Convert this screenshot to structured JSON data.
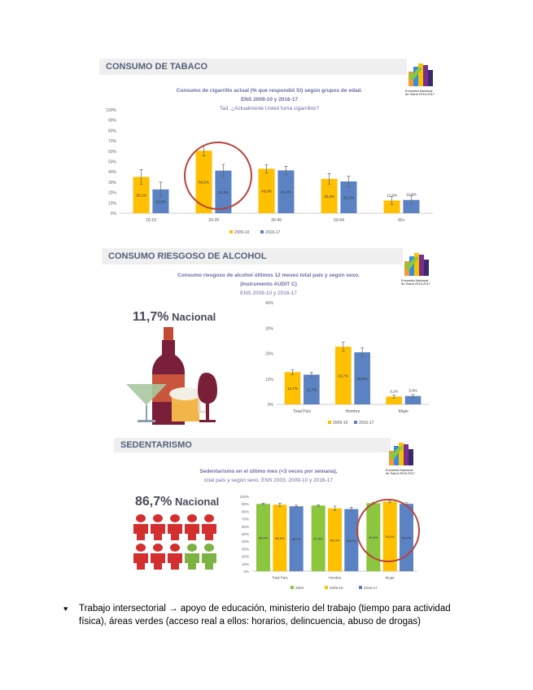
{
  "colors": {
    "y2003": "#8cc63f",
    "y2009": "#ffc000",
    "y2016": "#5b82c2"
  },
  "logo_text": "Encuesta Nacional de Salud 2016-2017",
  "panels": [
    {
      "header": "CONSUMO DE TABACO",
      "subtitle": [
        "Consumo de cigarrillo actual (% que respondió Sí) según grupos de edad.",
        "ENS 2009-10 y 2016-17",
        "Ta3. ¿Actualmente Usted fuma cigarrillos?"
      ]
    },
    {
      "header": "CONSUMO RIESGOSO DE ALCOHOL",
      "subtitle": [
        "Consumo riesgoso de alcohol últimos 12 meses total país  y según sexo.",
        "(Instrumento AUDIT C)",
        "ENS 2009-10 y 2016-17"
      ],
      "national_value": "11,7%",
      "national_label": "Nacional"
    },
    {
      "header": "SEDENTARISMO",
      "subtitle": [
        "Sedentarismo en el último mes (<3 veces por semana),",
        "total país y según sexo. ENS 2003, 2009-10 y 2016-17"
      ],
      "national_value": "86,7%",
      "national_label": "Nacional"
    }
  ],
  "chart_data": [
    {
      "type": "bar",
      "title": "Consumo de cigarrillo actual",
      "categories": [
        "15-19",
        "20-29",
        "30-49",
        "50-64",
        "65+"
      ],
      "ylim": [
        0,
        100
      ],
      "yticks": [
        "0%",
        "10%",
        "20%",
        "30%",
        "40%",
        "50%",
        "60%",
        "70%",
        "80%",
        "90%",
        "100%"
      ],
      "series": [
        {
          "name": "2009-10",
          "values": [
            35.1,
            60.5,
            43.0,
            33.2,
            12.3
          ],
          "labels": [
            "35,1%",
            "60,5%",
            "43,0%",
            "33,2%",
            "12,3%"
          ],
          "error": [
            7,
            5,
            4,
            5,
            4
          ]
        },
        {
          "name": "2016-17",
          "values": [
            23.0,
            41.2,
            41.4,
            30.7,
            12.8
          ],
          "labels": [
            "23,0%",
            "41,2%",
            "41,4%",
            "30,7%",
            "12,8%"
          ],
          "error": [
            7,
            6,
            4,
            5,
            4
          ]
        }
      ]
    },
    {
      "type": "bar",
      "title": "Consumo riesgoso de alcohol",
      "categories": [
        "Total País",
        "Hombre",
        "Mujer"
      ],
      "ylim": [
        0,
        40
      ],
      "yticks": [
        "0%",
        "10%",
        "20%",
        "30%",
        "40%"
      ],
      "series": [
        {
          "name": "2009-10",
          "values": [
            12.7,
            22.7,
            3.1
          ],
          "labels": [
            "12,7%",
            "22,7%",
            "3,1%"
          ],
          "error": [
            1,
            1.8,
            0.6
          ]
        },
        {
          "name": "2016-17",
          "values": [
            11.7,
            20.5,
            3.3
          ],
          "labels": [
            "11,7%",
            "20,5%",
            "3,3%"
          ],
          "error": [
            1,
            1.8,
            0.6
          ]
        }
      ]
    },
    {
      "type": "bar",
      "title": "Sedentarismo",
      "categories": [
        "Total País",
        "Hombre",
        "Mujer"
      ],
      "ylim": [
        0,
        100
      ],
      "yticks": [
        "0%",
        "10%",
        "20%",
        "30%",
        "40%",
        "50%",
        "60%",
        "70%",
        "80%",
        "90%",
        "100%"
      ],
      "series": [
        {
          "name": "2003",
          "values": [
            89.9,
            87.8,
            90.9
          ],
          "labels": [
            "89,9%",
            "87,8%",
            "90,9%"
          ],
          "error": [
            1,
            1,
            1
          ]
        },
        {
          "name": "2009-10",
          "values": [
            88.8,
            84.0,
            93.0
          ],
          "labels": [
            "88,8%",
            "84,0%",
            "93,0%"
          ],
          "error": [
            2,
            3,
            1.5
          ]
        },
        {
          "name": "2016-17",
          "values": [
            86.7,
            83.0,
            90.0
          ],
          "labels": [
            "86,7%",
            "83,0%",
            "90,0%"
          ],
          "error": [
            1.5,
            2.5,
            1.5
          ]
        }
      ]
    }
  ],
  "bullet": "Trabajo intersectorial → apoyo de educación, ministerio del trabajo (tiempo para actividad física), áreas verdes (acceso real a ellos: horarios, delincuencia, abuso de drogas)"
}
